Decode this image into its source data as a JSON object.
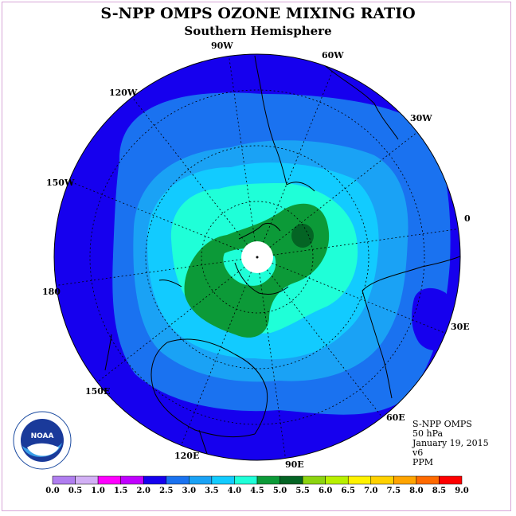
{
  "title": "S-NPP OMPS OZONE MIXING RATIO",
  "subtitle": "Southern Hemisphere",
  "info": {
    "line1": "S-NPP OMPS",
    "line2": "50 hPa",
    "line3": "January 19, 2015",
    "line4": "v6",
    "line5": "PPM"
  },
  "longitude_labels": [
    "0",
    "30W",
    "60W",
    "90W",
    "120W",
    "150W",
    "180",
    "150E",
    "120E",
    "90E",
    "60E",
    "30E"
  ],
  "logo": {
    "text": "NOAA"
  },
  "colorbar": {
    "ticks": [
      "0.0",
      "0.5",
      "1.0",
      "1.5",
      "2.0",
      "2.5",
      "3.0",
      "3.5",
      "4.0",
      "4.5",
      "5.0",
      "5.5",
      "6.0",
      "6.5",
      "7.0",
      "7.5",
      "8.0",
      "8.5",
      "9.0"
    ],
    "colors": [
      "#b07ef0",
      "#d2b0f5",
      "#ff00ff",
      "#c000ff",
      "#1600ee",
      "#1a72f0",
      "#1aa2f5",
      "#12cbff",
      "#1fffd8",
      "#0c9a38",
      "#046424",
      "#8cd410",
      "#b8f000",
      "#fff200",
      "#ffd100",
      "#ffa400",
      "#ff6a00",
      "#ff0000",
      "#8b5a30"
    ]
  },
  "map_colors": {
    "range_1.5_2.0": "#1600ee",
    "range_2.0_2.5": "#1a72f0",
    "range_2.5_3.0": "#1aa2f5",
    "range_3.0_3.5": "#12cbff",
    "range_3.5_4.0": "#1fffd8",
    "range_4.0_4.5": "#0c9a38",
    "range_4.5_5.0": "#046424",
    "pole": "#ffffff"
  }
}
